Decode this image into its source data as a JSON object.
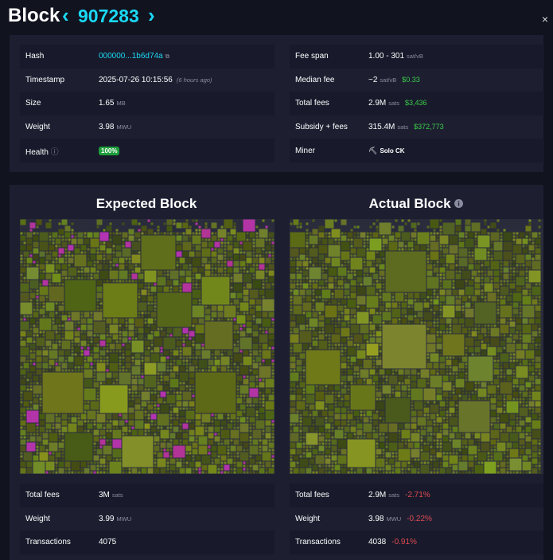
{
  "header": {
    "title": "Block",
    "block_height": "907283",
    "close": "×"
  },
  "details": {
    "left": [
      {
        "label": "Hash",
        "value": "000000...1b6d74a"
      },
      {
        "label": "Timestamp",
        "value": "2025-07-26 10:15:56",
        "note": "(6 hours ago)"
      },
      {
        "label": "Size",
        "value": "1.65",
        "unit": "MB"
      },
      {
        "label": "Weight",
        "value": "3.98",
        "unit": "MWU"
      },
      {
        "label": "Health",
        "badge": "100%"
      }
    ],
    "right": [
      {
        "label": "Fee span",
        "value": "1.00 - 301",
        "unit": "sat/vB"
      },
      {
        "label": "Median fee",
        "value": "~2",
        "unit": "sat/vB",
        "fiat": "$0.33"
      },
      {
        "label": "Total fees",
        "value": "2.9M",
        "unit": "sats",
        "fiat": "$3,436"
      },
      {
        "label": "Subsidy + fees",
        "value": "315.4M",
        "unit": "sats",
        "fiat": "$372,773"
      },
      {
        "label": "Miner",
        "value": "Solo CK"
      }
    ]
  },
  "overview": {
    "expected": {
      "title": "Expected Block",
      "stats": [
        {
          "label": "Total fees",
          "value": "3M",
          "unit": "sats"
        },
        {
          "label": "Weight",
          "value": "3.99",
          "unit": "MWU"
        },
        {
          "label": "Transactions",
          "value": "4075"
        }
      ]
    },
    "actual": {
      "title": "Actual Block",
      "stats": [
        {
          "label": "Total fees",
          "value": "2.9M",
          "unit": "sats",
          "change": "-2.71%"
        },
        {
          "label": "Weight",
          "value": "3.98",
          "unit": "MWU",
          "change": "-0.22%"
        },
        {
          "label": "Transactions",
          "value": "4038",
          "change": "-0.91%"
        }
      ]
    }
  }
}
